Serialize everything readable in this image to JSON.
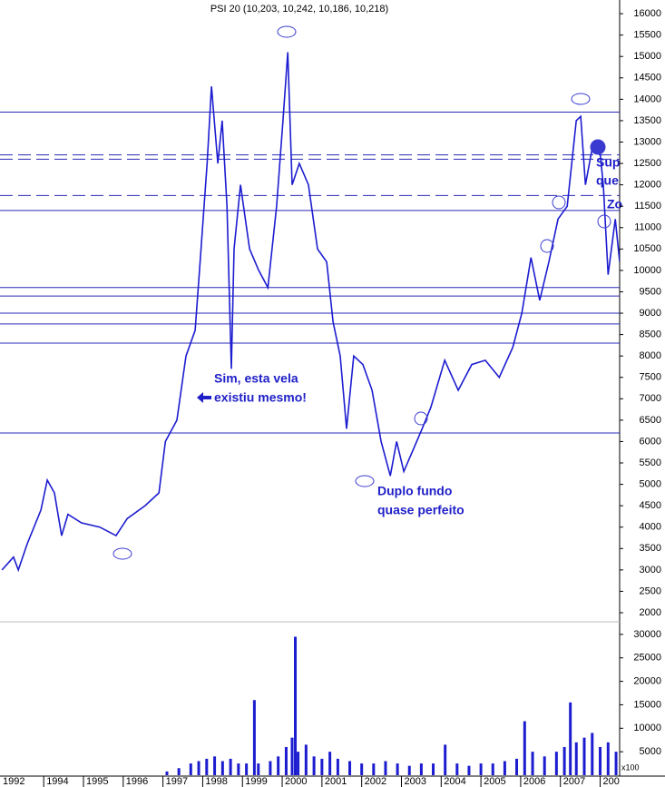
{
  "chart_data": [
    {
      "type": "line",
      "title": "PSI 20 (10,203, 10,242, 10,186, 10,218)",
      "series": [
        {
          "name": "PSI 20",
          "color": "#1c1cd0",
          "x": [
            1992.95,
            1993.24,
            1993.36,
            1993.58,
            1993.93,
            1994.09,
            1994.27,
            1994.45,
            1994.61,
            1994.95,
            1995.41,
            1995.82,
            1996.1,
            1996.55,
            1996.9,
            1997.06,
            1997.35,
            1997.58,
            1997.81,
            1997.92,
            1998.11,
            1998.22,
            1998.38,
            1998.49,
            1998.61,
            1998.72,
            1998.79,
            1998.95,
            1999.18,
            1999.41,
            1999.64,
            1999.86,
            2000.02,
            2000.14,
            2000.25,
            2000.43,
            2000.66,
            2000.89,
            2001.12,
            2001.28,
            2001.46,
            2001.62,
            2001.8,
            2002.03,
            2002.26,
            2002.49,
            2002.72,
            2002.88,
            2003.06,
            2003.29,
            2003.52,
            2003.74,
            2004.09,
            2004.43,
            2004.77,
            2005.11,
            2005.46,
            2005.8,
            2006.03,
            2006.26,
            2006.48,
            2006.71,
            2006.94,
            2007.17,
            2007.4,
            2007.51,
            2007.63,
            2007.79,
            2007.97,
            2008.08,
            2008.2,
            2008.38,
            2008.49
          ],
          "values": [
            3000,
            3300,
            3000,
            3600,
            4400,
            5100,
            4800,
            3800,
            4300,
            4100,
            4000,
            3800,
            4200,
            4500,
            4800,
            6000,
            6500,
            8000,
            8600,
            10000,
            12500,
            14300,
            12500,
            13500,
            11500,
            7700,
            10500,
            12000,
            10500,
            10000,
            9600,
            11500,
            13500,
            15100,
            12000,
            12500,
            12000,
            10500,
            10200,
            8800,
            8000,
            6300,
            8000,
            7800,
            7200,
            6000,
            5200,
            6000,
            5300,
            5800,
            6300,
            6800,
            7900,
            7200,
            7800,
            7900,
            7500,
            8200,
            9000,
            10300,
            9300,
            10200,
            11200,
            11500,
            13500,
            13600,
            12000,
            12800,
            13000,
            12000,
            9900,
            11200,
            10200
          ]
        }
      ],
      "hlines": [
        13700,
        11400,
        9600,
        9400,
        9000,
        8750,
        8300,
        6200
      ],
      "dashed_hlines": [
        12700,
        12600,
        11750
      ],
      "annotations": [
        "Sim, esta vela",
        "existiu mesmo!",
        "Duplo fundo",
        "quase perfeito",
        "Sup",
        "que",
        "Zo"
      ],
      "xlim": [
        1992.9,
        2008.49
      ],
      "ylim": [
        1830,
        16320
      ],
      "yticks": [
        2000,
        2500,
        3000,
        3500,
        4000,
        4500,
        5000,
        5500,
        6000,
        6500,
        7000,
        7500,
        8000,
        8500,
        9000,
        9500,
        10000,
        10500,
        11000,
        11500,
        12000,
        12500,
        13000,
        13500,
        14000,
        14500,
        15000,
        15500,
        16000
      ]
    },
    {
      "type": "bar",
      "ylabel": "x100",
      "color": "#1c1cd0",
      "x": [
        1997.1,
        1997.4,
        1997.7,
        1997.9,
        1998.1,
        1998.3,
        1998.5,
        1998.7,
        1998.9,
        1999.1,
        1999.3,
        1999.4,
        1999.7,
        1999.9,
        2000.1,
        2000.25,
        2000.33,
        2000.4,
        2000.6,
        2000.8,
        2001.0,
        2001.2,
        2001.4,
        2001.7,
        2002.0,
        2002.3,
        2002.6,
        2002.9,
        2003.2,
        2003.5,
        2003.8,
        2004.1,
        2004.4,
        2004.7,
        2005.0,
        2005.3,
        2005.6,
        2005.9,
        2006.1,
        2006.3,
        2006.6,
        2006.9,
        2007.1,
        2007.25,
        2007.4,
        2007.6,
        2007.8,
        2008.0,
        2008.2,
        2008.4
      ],
      "values": [
        800,
        1500,
        2500,
        3000,
        3500,
        4000,
        3000,
        3500,
        2500,
        2500,
        16000,
        2500,
        3000,
        4000,
        6000,
        8000,
        29500,
        5000,
        6500,
        4000,
        3500,
        5000,
        3500,
        3000,
        2500,
        2500,
        3000,
        2500,
        2000,
        2500,
        2500,
        6500,
        2500,
        2000,
        2500,
        2500,
        3000,
        3500,
        11500,
        5000,
        4000,
        5000,
        6000,
        15500,
        7000,
        8000,
        9000,
        6000,
        7000,
        5000
      ],
      "xlim": [
        1992.9,
        2008.49
      ],
      "xticks": [
        1992,
        1994,
        1995,
        1996,
        1997,
        1998,
        1999,
        2000,
        2001,
        2002,
        2003,
        2004,
        2005,
        2006,
        2007,
        2008
      ],
      "ylim": [
        0,
        32100
      ],
      "yticks": [
        5000,
        10000,
        15000,
        20000,
        25000,
        30000
      ]
    }
  ]
}
